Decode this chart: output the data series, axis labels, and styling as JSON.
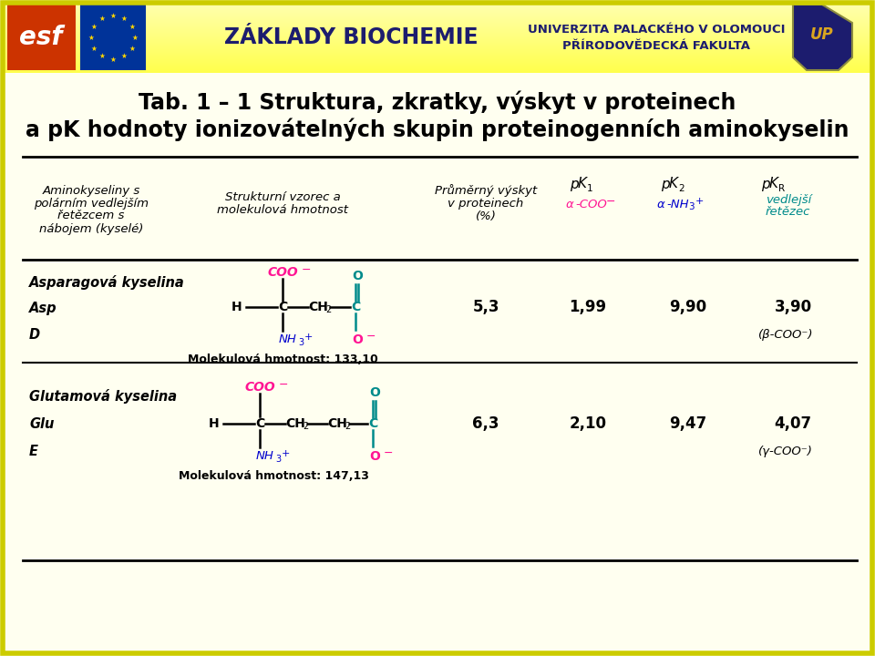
{
  "title_line1": "Tab. 1 – 1 Struktura, zkratky, výskyt v proteinech",
  "title_line2": "a pΚ hodnoty ionizovátelných skupin proteinogenních aminokyselin",
  "bg_color": "#FFFFF0",
  "header_yellow_top": "#FFFF88",
  "header_yellow_bot": "#FFFF00",
  "text_color": "#000000",
  "dark_blue": "#1C1C6E",
  "pink_color": "#FF1493",
  "cyan_color": "#0000CD",
  "teal_color": "#008B8B",
  "row1_name": "Asparagová kyselina",
  "row1_abbr": "Asp",
  "row1_letter": "D",
  "row1_mw": "Molekulová hmotnost: 133,10",
  "row1_occurrence": "5,3",
  "row1_pk1": "1,99",
  "row1_pk2": "9,90",
  "row1_pkR": "3,90",
  "row1_pkR_note": "(β-COO⁻)",
  "row2_name": "Glutamová kyselina",
  "row2_abbr": "Glu",
  "row2_letter": "E",
  "row2_mw": "Molekulová hmotnost: 147,13",
  "row2_occurrence": "6,3",
  "row2_pk1": "2,10",
  "row2_pk2": "9,47",
  "row2_pkR": "4,07",
  "row2_pkR_note": "(γ-COO⁻)"
}
